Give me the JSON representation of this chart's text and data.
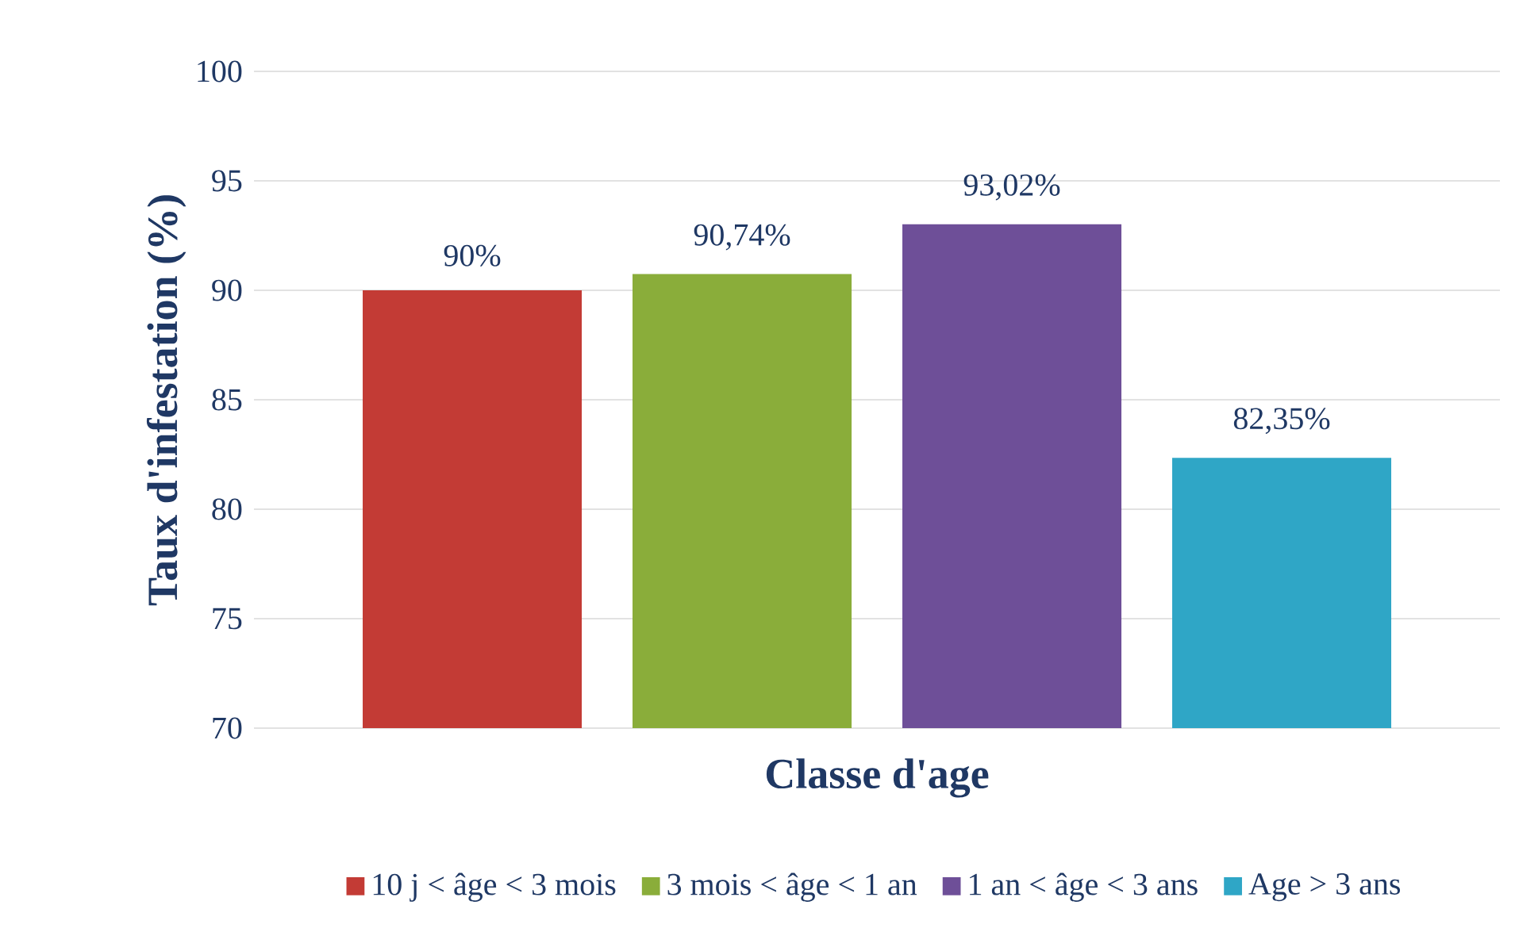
{
  "chart_data": {
    "type": "bar",
    "xlabel": "Classe d'age",
    "ylabel": "Taux d'infestation (%)",
    "categories": [
      null
    ],
    "series": [
      {
        "name": "10 j < âge < 3 mois",
        "color": "#c33b35",
        "values": [
          90
        ],
        "value_labels": [
          "90%"
        ]
      },
      {
        "name": "3 mois < âge < 1 an",
        "color": "#8aad3a",
        "values": [
          90.74
        ],
        "value_labels": [
          "90,74%"
        ]
      },
      {
        "name": "1 an < âge < 3 ans",
        "color": "#6e4f98",
        "values": [
          93.02
        ],
        "value_labels": [
          "93,02%"
        ]
      },
      {
        "name": "Age > 3 ans",
        "color": "#2fa6c6",
        "values": [
          82.35
        ],
        "value_labels": [
          "82,35%"
        ]
      }
    ],
    "ylim": [
      70,
      100
    ],
    "yticks": [
      70,
      75,
      80,
      85,
      90,
      95,
      100
    ],
    "grid": "y",
    "legend": "bottom"
  }
}
